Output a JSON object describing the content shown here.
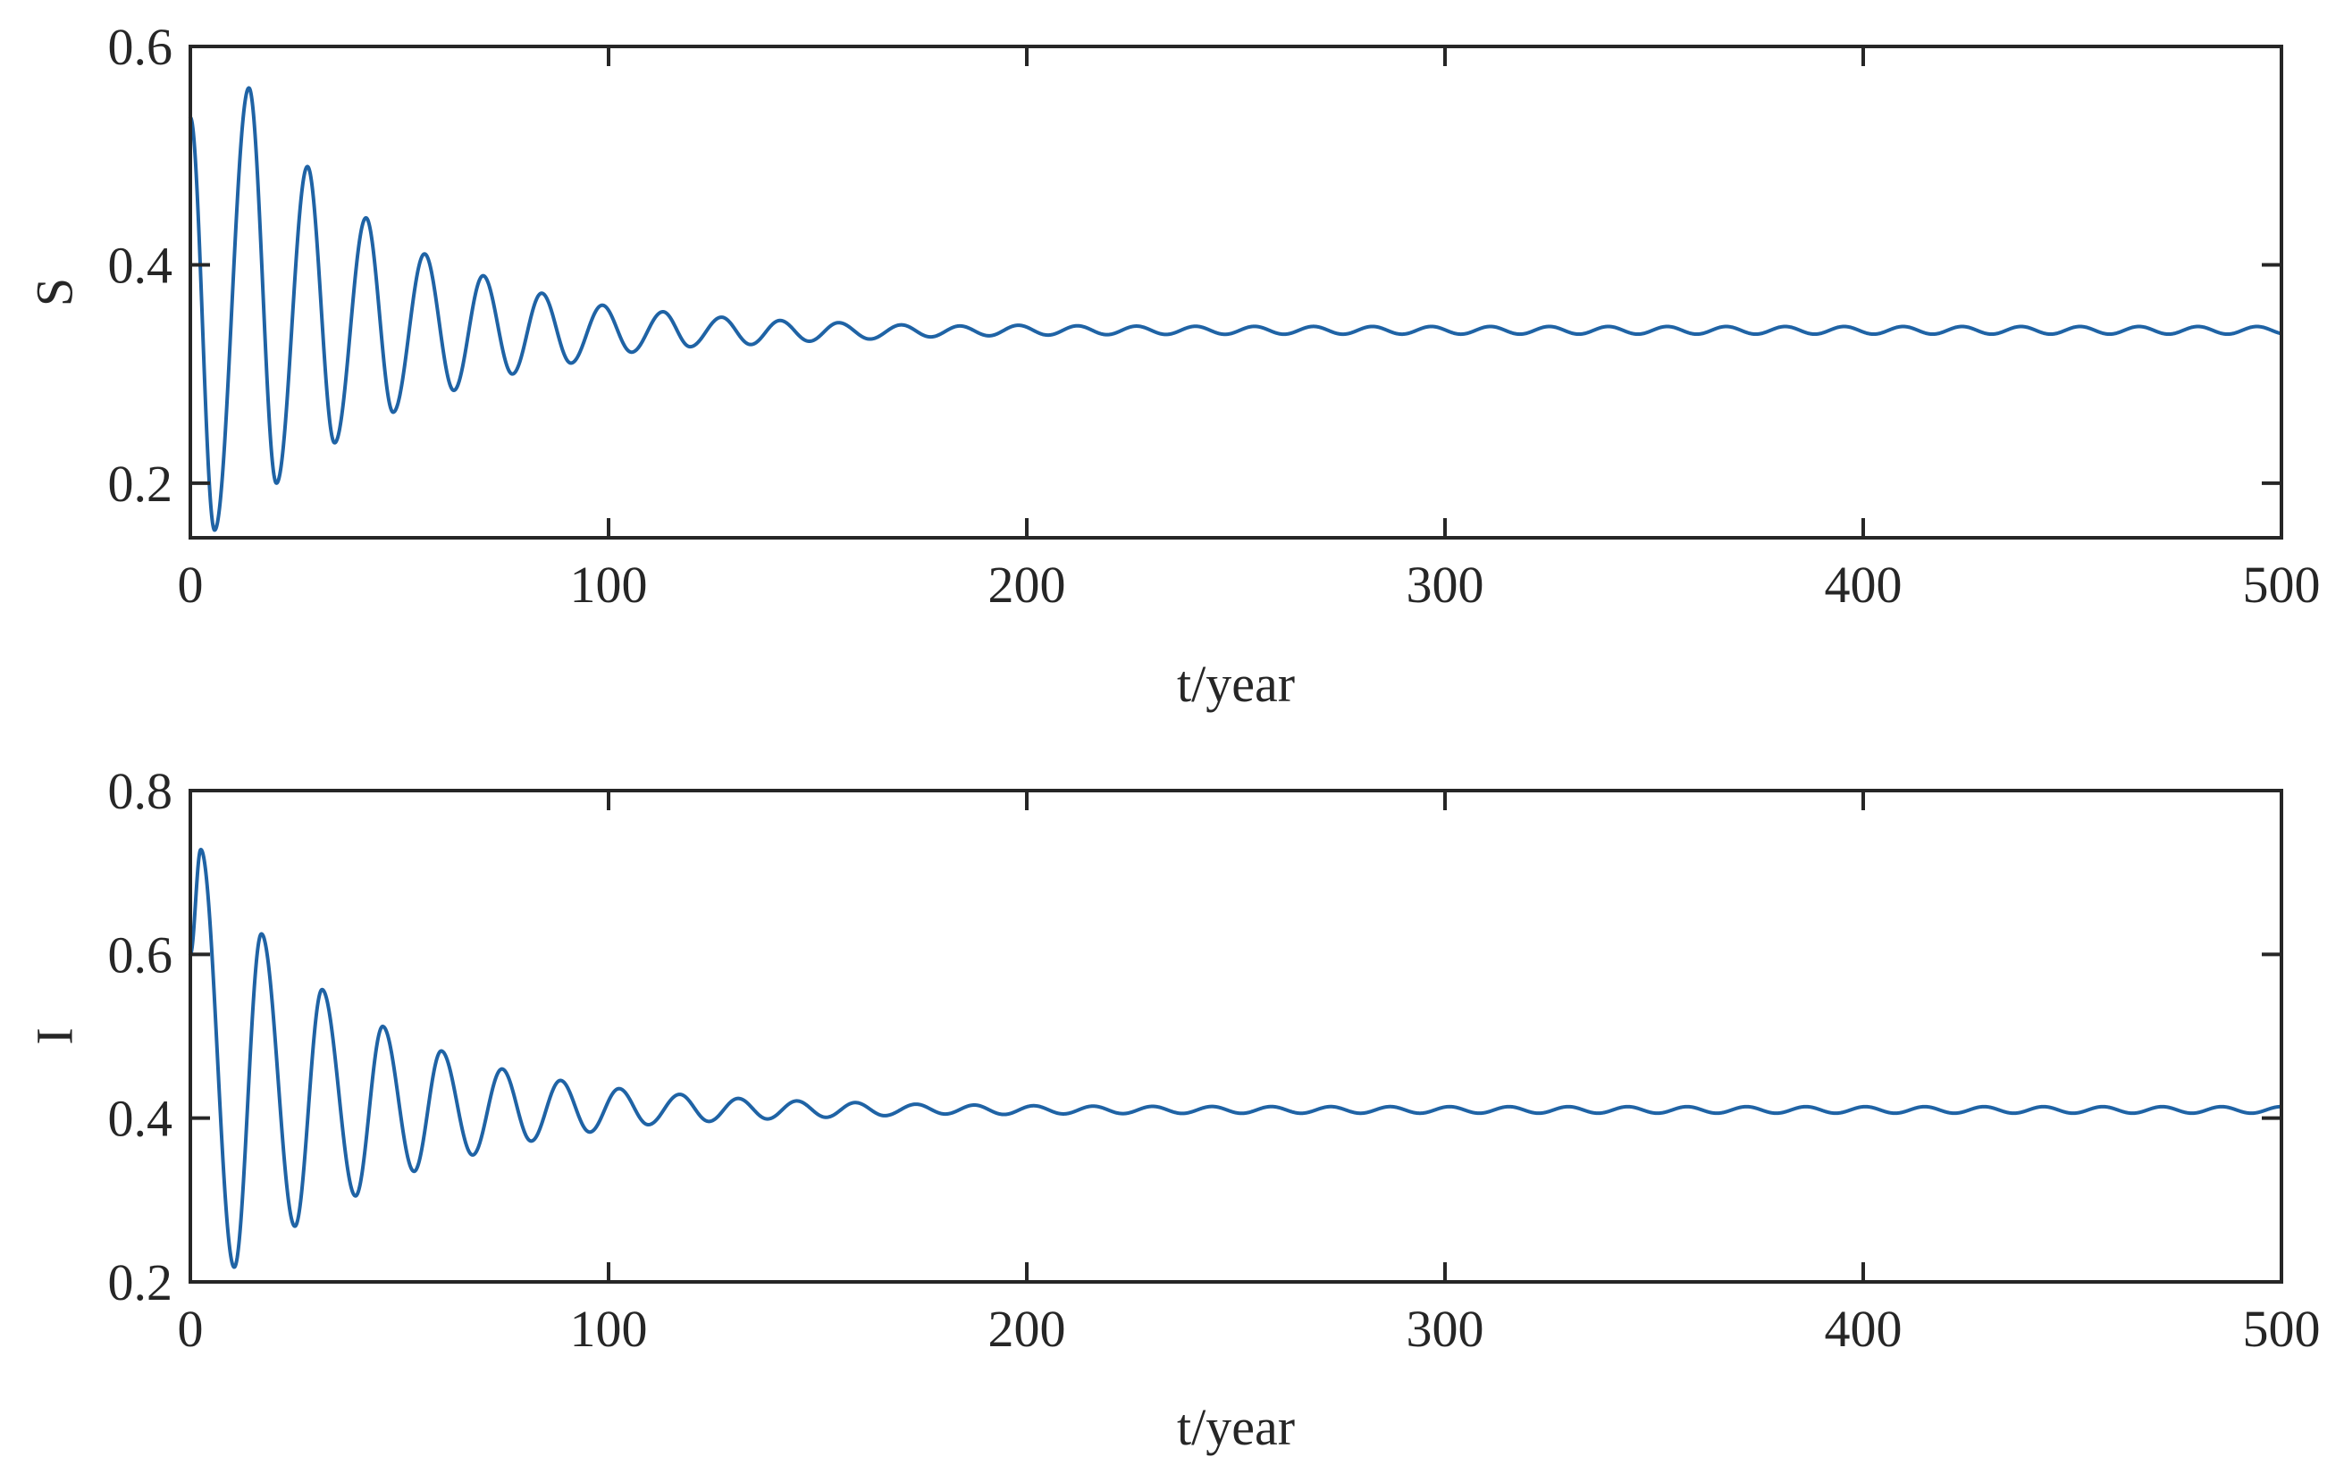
{
  "chart_data": [
    {
      "type": "line",
      "title": "",
      "xlabel": "t/year",
      "ylabel": "S",
      "xlim": [
        0,
        500
      ],
      "ylim": [
        0.15,
        0.6
      ],
      "xticks": [
        0,
        100,
        200,
        300,
        400,
        500
      ],
      "xtick_labels": [
        "0",
        "100",
        "200",
        "300",
        "400",
        "500"
      ],
      "yticks": [
        0.2,
        0.4,
        0.6
      ],
      "ytick_labels": [
        "0.2",
        "0.4",
        "0.6"
      ],
      "grid": false,
      "series": [
        {
          "name": "S",
          "color": "#1f63a5",
          "model": {
            "kind": "damped-oscillation",
            "equilibrium": 0.34,
            "start": 0.535,
            "extrema": [
              {
                "t": 5.8,
                "v": 0.157
              },
              {
                "t": 14.0,
                "v": 0.562
              },
              {
                "t": 20.6,
                "v": 0.2
              },
              {
                "t": 28.0,
                "v": 0.49
              },
              {
                "t": 34.5,
                "v": 0.237
              },
              {
                "t": 42.0,
                "v": 0.443
              },
              {
                "t": 48.5,
                "v": 0.265
              },
              {
                "t": 56.0,
                "v": 0.41
              },
              {
                "t": 63.0,
                "v": 0.285
              },
              {
                "t": 70.0,
                "v": 0.39
              },
              {
                "t": 77.0,
                "v": 0.3
              },
              {
                "t": 84.0,
                "v": 0.374
              },
              {
                "t": 91.0,
                "v": 0.31
              },
              {
                "t": 98.5,
                "v": 0.363
              },
              {
                "t": 105.5,
                "v": 0.32
              },
              {
                "t": 113.0,
                "v": 0.357
              },
              {
                "t": 119.5,
                "v": 0.325
              },
              {
                "t": 127.0,
                "v": 0.352
              },
              {
                "t": 134.0,
                "v": 0.327
              },
              {
                "t": 141.0,
                "v": 0.349
              },
              {
                "t": 148.0,
                "v": 0.33
              },
              {
                "t": 155.0,
                "v": 0.347
              },
              {
                "t": 162.5,
                "v": 0.332
              },
              {
                "t": 170.0,
                "v": 0.345
              },
              {
                "t": 177.0,
                "v": 0.334
              },
              {
                "t": 184.0,
                "v": 0.344
              },
              {
                "t": 191.0,
                "v": 0.335
              }
            ],
            "period": 14.1,
            "tail_amplitude": 0.0035
          }
        }
      ]
    },
    {
      "type": "line",
      "title": "",
      "xlabel": "t/year",
      "ylabel": "I",
      "xlim": [
        0,
        500
      ],
      "ylim": [
        0.2,
        0.8
      ],
      "xticks": [
        0,
        100,
        200,
        300,
        400,
        500
      ],
      "xtick_labels": [
        "0",
        "100",
        "200",
        "300",
        "400",
        "500"
      ],
      "yticks": [
        0.2,
        0.4,
        0.6,
        0.8
      ],
      "ytick_labels": [
        "0.2",
        "0.4",
        "0.6",
        "0.8"
      ],
      "grid": false,
      "series": [
        {
          "name": "I",
          "color": "#1f63a5",
          "model": {
            "kind": "damped-oscillation",
            "equilibrium": 0.41,
            "start": 0.6,
            "extrema": [
              {
                "t": 2.5,
                "v": 0.728
              },
              {
                "t": 10.5,
                "v": 0.218
              },
              {
                "t": 17.0,
                "v": 0.625
              },
              {
                "t": 25.0,
                "v": 0.268
              },
              {
                "t": 31.5,
                "v": 0.557
              },
              {
                "t": 39.5,
                "v": 0.305
              },
              {
                "t": 46.0,
                "v": 0.512
              },
              {
                "t": 53.5,
                "v": 0.335
              },
              {
                "t": 60.0,
                "v": 0.482
              },
              {
                "t": 67.5,
                "v": 0.355
              },
              {
                "t": 74.5,
                "v": 0.46
              },
              {
                "t": 81.5,
                "v": 0.372
              },
              {
                "t": 88.5,
                "v": 0.446
              },
              {
                "t": 95.5,
                "v": 0.383
              },
              {
                "t": 102.5,
                "v": 0.436
              },
              {
                "t": 109.5,
                "v": 0.392
              },
              {
                "t": 117.0,
                "v": 0.429
              },
              {
                "t": 124.0,
                "v": 0.396
              },
              {
                "t": 131.0,
                "v": 0.424
              },
              {
                "t": 138.0,
                "v": 0.399
              },
              {
                "t": 145.0,
                "v": 0.421
              },
              {
                "t": 152.0,
                "v": 0.401
              },
              {
                "t": 159.0,
                "v": 0.419
              },
              {
                "t": 166.0,
                "v": 0.403
              },
              {
                "t": 173.5,
                "v": 0.417
              },
              {
                "t": 180.5,
                "v": 0.405
              },
              {
                "t": 187.5,
                "v": 0.416
              }
            ],
            "period": 14.2,
            "tail_amplitude": 0.004
          }
        }
      ]
    }
  ]
}
